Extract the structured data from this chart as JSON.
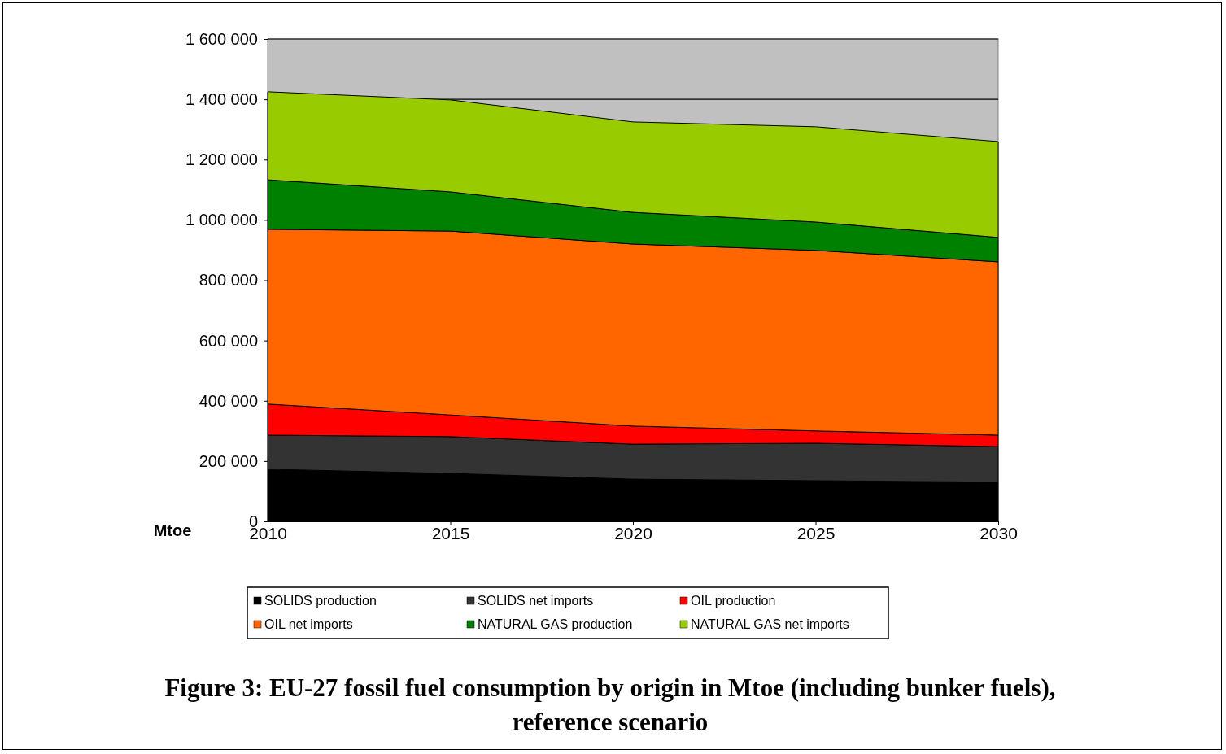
{
  "chart_data": {
    "type": "area",
    "stacked": true,
    "title": "Figure 3: EU-27 fossil fuel consumption by origin in Mtoe (including bunker fuels), reference scenario",
    "ylabel": "Mtoe",
    "x": [
      2010,
      2015,
      2020,
      2025,
      2030
    ],
    "xlim": [
      2010,
      2030
    ],
    "xticks": [
      2010,
      2015,
      2020,
      2025,
      2030
    ],
    "ylim": [
      0,
      1600000
    ],
    "yticks": [
      0,
      {
        "value": 200000,
        "label": "200 000"
      },
      {
        "value": 400000,
        "label": "400 000"
      },
      {
        "value": 600000,
        "label": "600 000"
      },
      {
        "value": 800000,
        "label": "800 000"
      },
      {
        "value": 1000000,
        "label": "1 000 000"
      },
      {
        "value": 1200000,
        "label": "1 200 000"
      },
      {
        "value": 1400000,
        "label": "1 400 000"
      },
      {
        "value": 1600000,
        "label": "1 600 000"
      }
    ],
    "grid": "y",
    "legend": "bottom",
    "series": [
      {
        "name": "SOLIDS production",
        "color": "#000000",
        "values": [
          173000,
          159000,
          140000,
          135000,
          130000
        ]
      },
      {
        "name": "SOLIDS net imports",
        "color": "#333333",
        "values": [
          113000,
          122000,
          116000,
          124000,
          118000
        ]
      },
      {
        "name": "OIL production",
        "color": "#ff0000",
        "values": [
          103000,
          72000,
          60000,
          41000,
          38000
        ]
      },
      {
        "name": "OIL net imports",
        "color": "#ff6600",
        "values": [
          580000,
          610000,
          604000,
          599000,
          575000
        ]
      },
      {
        "name": "NATURAL GAS production",
        "color": "#008000",
        "values": [
          164000,
          130000,
          105000,
          94000,
          81000
        ]
      },
      {
        "name": "NATURAL GAS net imports",
        "color": "#99cc00",
        "values": [
          292000,
          305000,
          300000,
          316000,
          318000
        ]
      }
    ]
  }
}
